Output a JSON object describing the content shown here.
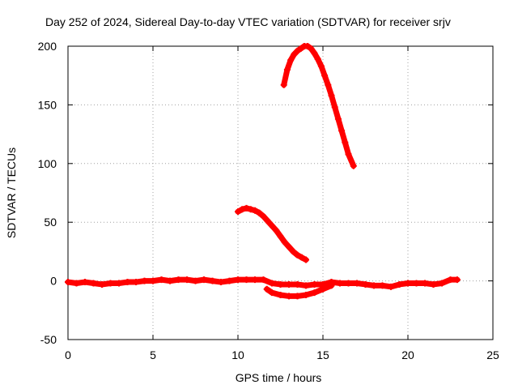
{
  "chart_data": {
    "type": "scatter",
    "title": "Day 252 of 2024, Sidereal Day-to-day VTEC variation (SDTVAR) for receiver srjv",
    "xlabel": "GPS time / hours",
    "ylabel": "SDTVAR / TECUs",
    "xlim": [
      0,
      25
    ],
    "ylim": [
      -50,
      200
    ],
    "xticks": [
      "0",
      "5",
      "10",
      "15",
      "20",
      "25"
    ],
    "yticks": [
      "-50",
      "0",
      "50",
      "100",
      "150",
      "200"
    ],
    "grid": true,
    "color": "#ff0000",
    "marker": "plus",
    "series": [
      {
        "x": [
          0,
          0.5,
          1,
          1.5,
          2,
          2.5,
          3,
          3.5,
          4,
          4.5,
          5,
          5.5,
          6,
          6.5,
          7,
          7.5,
          8,
          8.5,
          9,
          9.5,
          10,
          10.5,
          11,
          11.5,
          12,
          12.5,
          13,
          13.5,
          14,
          14.5,
          15,
          15.5,
          16,
          16.5,
          17,
          17.5,
          18,
          18.5,
          19,
          19.5,
          20,
          20.5,
          21,
          21.5,
          22,
          22.5,
          22.9
        ],
        "y": [
          -1,
          -2,
          -1,
          -2,
          -3,
          -2,
          -2,
          -1,
          -1,
          0,
          0,
          1,
          0,
          1,
          1,
          0,
          1,
          0,
          -1,
          0,
          1,
          1,
          1,
          1,
          -2,
          -3,
          -3,
          -3,
          -4,
          -3,
          -3,
          -1,
          -2,
          -2,
          -2,
          -3,
          -4,
          -4,
          -5,
          -3,
          -2,
          -2,
          -2,
          -3,
          -2,
          1,
          1
        ]
      },
      {
        "x": [
          11.7,
          12,
          12.5,
          13,
          13.5,
          14,
          14.5,
          15,
          15.5
        ],
        "y": [
          -7,
          -10,
          -12,
          -13,
          -13,
          -12,
          -10,
          -7,
          -4
        ]
      },
      {
        "x": [
          10,
          10.25,
          10.5,
          10.75,
          11,
          11.25,
          11.5,
          11.75,
          12,
          12.25,
          12.5,
          12.75,
          13,
          13.25,
          13.5,
          13.75,
          14
        ],
        "y": [
          59,
          61,
          62,
          61,
          60,
          58,
          55,
          51,
          47,
          43,
          38,
          33,
          29,
          25,
          22,
          20,
          18
        ]
      },
      {
        "x": [
          12.7,
          12.9,
          13.1,
          13.3,
          13.5,
          13.7,
          13.9,
          14.1,
          14.3,
          14.5,
          14.7,
          14.9,
          15.1,
          15.3,
          15.5,
          15.7,
          15.9,
          16.1,
          16.3,
          16.5,
          16.8
        ],
        "y": [
          167,
          180,
          188,
          193,
          196,
          198,
          200,
          200,
          198,
          194,
          189,
          183,
          175,
          167,
          158,
          148,
          138,
          128,
          118,
          108,
          98
        ]
      }
    ]
  }
}
